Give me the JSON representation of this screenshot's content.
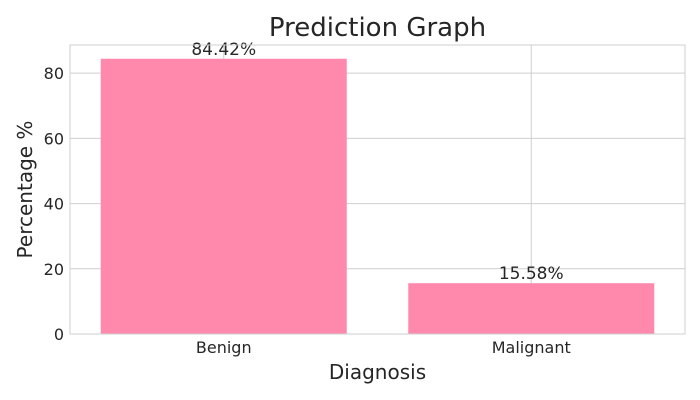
{
  "chart_data": {
    "type": "bar",
    "title": "Prediction Graph",
    "xlabel": "Diagnosis",
    "ylabel": "Percentage %",
    "categories": [
      "Benign",
      "Malignant"
    ],
    "values": [
      84.42,
      15.58
    ],
    "data_labels": [
      "84.42%",
      "15.58%"
    ],
    "ylim": [
      0,
      88.64
    ],
    "yticks": [
      0,
      20,
      40,
      60,
      80
    ],
    "grid": true,
    "bar_color": "#ff88ad"
  }
}
